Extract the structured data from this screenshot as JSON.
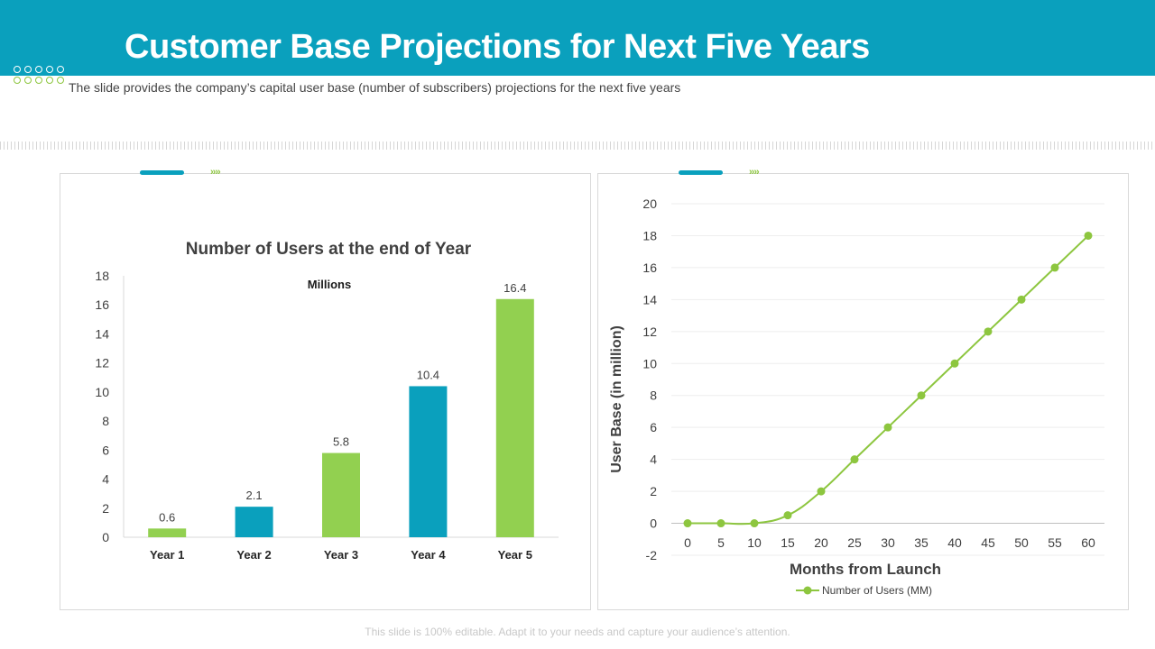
{
  "slide": {
    "title": "Customer Base Projections for Next Five Years",
    "subtitle": "The slide provides the company’s capital user base (number of subscribers) projections for the next five years",
    "footer": "This slide is 100% editable. Adapt it to your needs and capture your audience’s attention.",
    "tab_arrows": "››››"
  },
  "colors": {
    "header": "#0aa0bd",
    "green": "#92d050",
    "teal": "#0aa0bd",
    "line": "#8dc63f"
  },
  "chart_data": [
    {
      "type": "bar",
      "title": "Number of Users at the end of Year",
      "annotation": "Millions",
      "categories": [
        "Year 1",
        "Year 2",
        "Year 3",
        "Year 4",
        "Year 5"
      ],
      "values": [
        0.6,
        2.1,
        5.8,
        10.4,
        16.4
      ],
      "value_labels": [
        "0.6",
        "2.1",
        "5.8",
        "10.4",
        "16.4"
      ],
      "bar_colors": [
        "#92d050",
        "#0aa0bd",
        "#92d050",
        "#0aa0bd",
        "#92d050"
      ],
      "ylim": [
        0,
        18
      ],
      "yticks": [
        0,
        2,
        4,
        6,
        8,
        10,
        12,
        14,
        16,
        18
      ],
      "xlabel": "",
      "ylabel": "",
      "grid": false
    },
    {
      "type": "line",
      "title": "",
      "series": [
        {
          "name": "Number of Users (MM)",
          "x": [
            0,
            5,
            10,
            15,
            20,
            25,
            30,
            35,
            40,
            45,
            50,
            55,
            60
          ],
          "values": [
            0,
            0,
            0,
            0.5,
            2,
            4,
            6,
            8,
            10,
            12,
            14,
            16,
            18
          ]
        }
      ],
      "xticks": [
        0,
        5,
        10,
        15,
        20,
        25,
        30,
        35,
        40,
        45,
        50,
        55,
        60
      ],
      "yticks": [
        -2,
        0,
        2,
        4,
        6,
        8,
        10,
        12,
        14,
        16,
        18,
        20
      ],
      "xlim": [
        0,
        60
      ],
      "ylim": [
        -2,
        20
      ],
      "xlabel": "Months from Launch",
      "ylabel": "User Base (in million)",
      "grid": true,
      "legend": "bottom"
    }
  ]
}
